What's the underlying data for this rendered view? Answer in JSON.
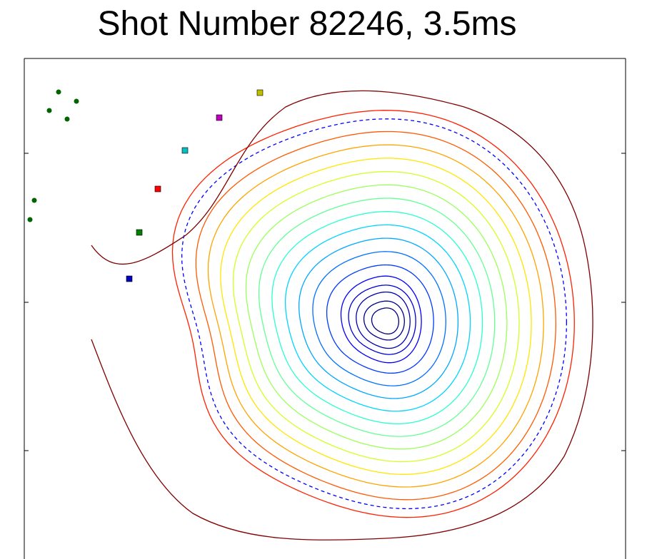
{
  "chart_data": {
    "type": "contour",
    "title": "Shot Number 82246, 3.5ms",
    "xlabel": "",
    "ylabel": "",
    "grid": false,
    "legend": "none",
    "contour_levels": 16,
    "magnetic_axis": {
      "x": 0.4,
      "y": -0.05
    },
    "flux_contours": [
      {
        "level": 1,
        "color": "#00007f",
        "rx": 0.05,
        "ry": 0.06
      },
      {
        "level": 2,
        "color": "#00008d",
        "rx": 0.075,
        "ry": 0.09
      },
      {
        "level": 3,
        "color": "#0000b0",
        "rx": 0.1,
        "ry": 0.13
      },
      {
        "level": 4,
        "color": "#0000d6",
        "rx": 0.125,
        "ry": 0.16
      },
      {
        "level": 5,
        "color": "#0000ff",
        "rx": 0.15,
        "ry": 0.2
      },
      {
        "level": 6,
        "color": "#0039ff",
        "rx": 0.2,
        "ry": 0.25
      },
      {
        "level": 7,
        "color": "#0070ff",
        "rx": 0.25,
        "ry": 0.31
      },
      {
        "level": 8,
        "color": "#00a8ff",
        "rx": 0.3,
        "ry": 0.37
      },
      {
        "level": 9,
        "color": "#00d4ff",
        "rx": 0.35,
        "ry": 0.43
      },
      {
        "level": 10,
        "color": "#29ffce",
        "rx": 0.4,
        "ry": 0.49
      },
      {
        "level": 11,
        "color": "#62ff94",
        "rx": 0.45,
        "ry": 0.55
      },
      {
        "level": 12,
        "color": "#9cff5a",
        "rx": 0.5,
        "ry": 0.61
      },
      {
        "level": 13,
        "color": "#d2ff25",
        "rx": 0.55,
        "ry": 0.67
      },
      {
        "level": 14,
        "color": "#ffe600",
        "rx": 0.6,
        "ry": 0.73
      },
      {
        "level": 15,
        "color": "#ffa300",
        "rx": 0.65,
        "ry": 0.79
      },
      {
        "level": 16,
        "color": "#ff5900",
        "rx": 0.7,
        "ry": 0.85
      }
    ],
    "separatrix": {
      "color": "#0000ff",
      "style": "dashed"
    },
    "outer_boundary": {
      "color": "#ff2000"
    },
    "open_field_line": {
      "color": "#7f0000"
    },
    "probes": [
      {
        "color": "#bfbf00"
      },
      {
        "color": "#bf00bf"
      },
      {
        "color": "#00bfbf"
      },
      {
        "color": "#ff0000"
      },
      {
        "color": "#007f00"
      },
      {
        "color": "#0000bf"
      }
    ],
    "coil_points": {
      "color": "#006400",
      "count": 6
    },
    "structure_color": "#000000"
  }
}
